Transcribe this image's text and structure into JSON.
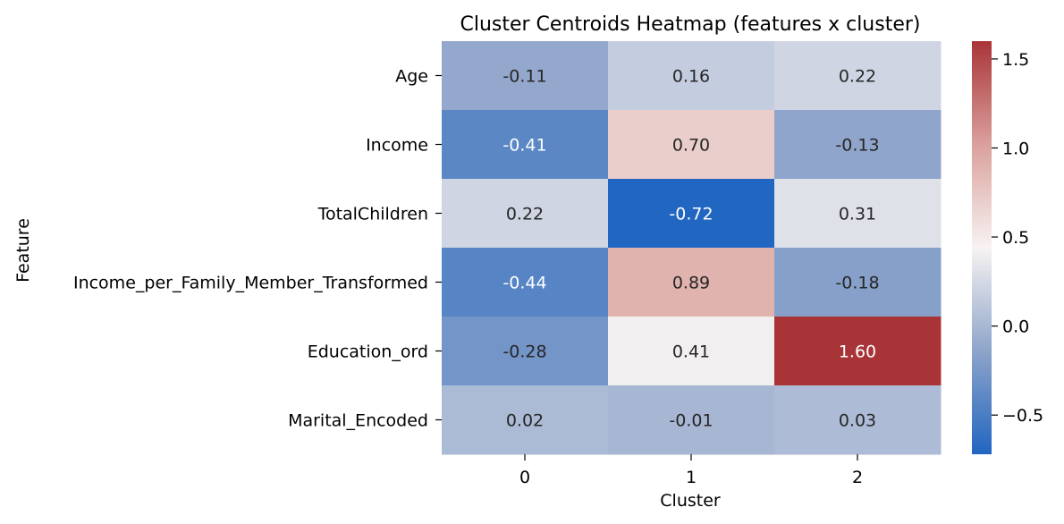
{
  "chart_data": {
    "type": "heatmap",
    "title": "Cluster Centroids Heatmap (features x cluster)",
    "xlabel": "Cluster",
    "ylabel": "Feature",
    "x_categories": [
      "0",
      "1",
      "2"
    ],
    "y_categories": [
      "Age",
      "Income",
      "TotalChildren",
      "Income_per_Family_Member_Transformed",
      "Education_ord",
      "Marital_Encoded"
    ],
    "values": [
      [
        -0.11,
        0.16,
        0.22
      ],
      [
        -0.41,
        0.7,
        -0.13
      ],
      [
        0.22,
        -0.72,
        0.31
      ],
      [
        -0.44,
        0.89,
        -0.18
      ],
      [
        -0.28,
        0.41,
        1.6
      ],
      [
        0.02,
        -0.01,
        0.03
      ]
    ],
    "value_labels": [
      [
        "-0.11",
        "0.16",
        "0.22"
      ],
      [
        "-0.41",
        "0.70",
        "-0.13"
      ],
      [
        "0.22",
        "-0.72",
        "0.31"
      ],
      [
        "-0.44",
        "0.89",
        "-0.18"
      ],
      [
        "-0.28",
        "0.41",
        "1.60"
      ],
      [
        "0.02",
        "-0.01",
        "0.03"
      ]
    ],
    "colormap": "vlag",
    "color_range": [
      -0.72,
      1.6
    ],
    "colorbar_ticks": [
      -0.5,
      0.0,
      0.5,
      1.0,
      1.5
    ],
    "colorbar_tick_labels": [
      "−0.5",
      "0.0",
      "0.5",
      "1.0",
      "1.5"
    ],
    "grid": false
  }
}
